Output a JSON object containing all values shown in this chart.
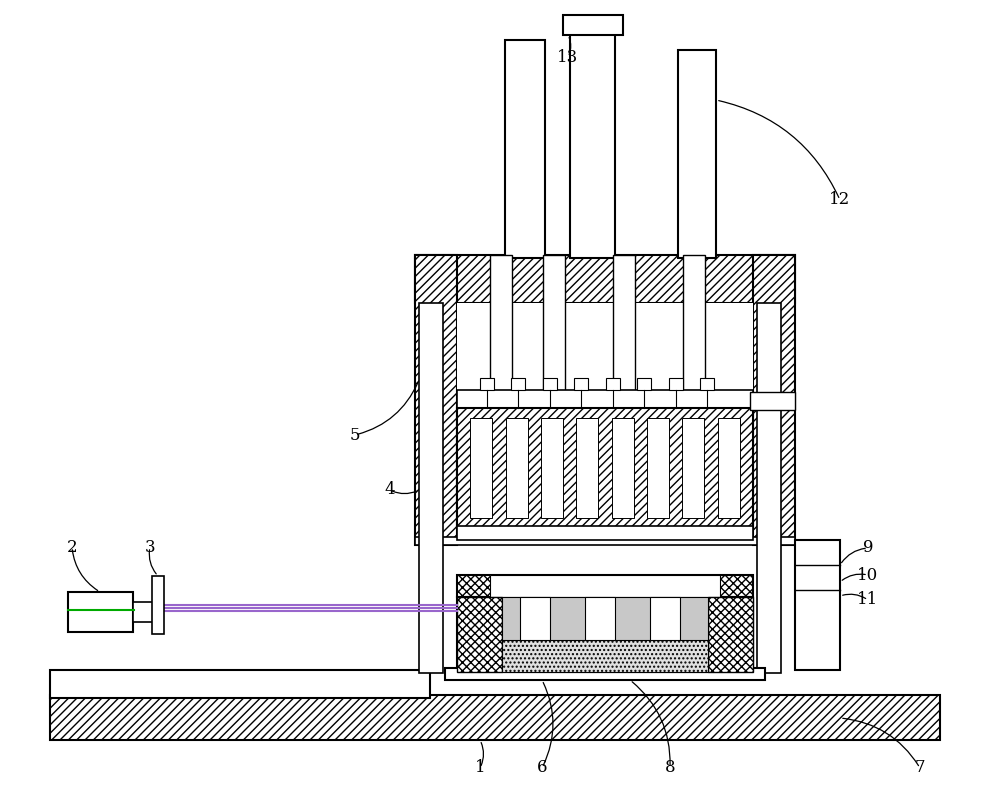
{
  "bg_color": "#ffffff",
  "lc": "#000000",
  "fig_width": 10.0,
  "fig_height": 8.01,
  "hatch_scale": 1.0
}
